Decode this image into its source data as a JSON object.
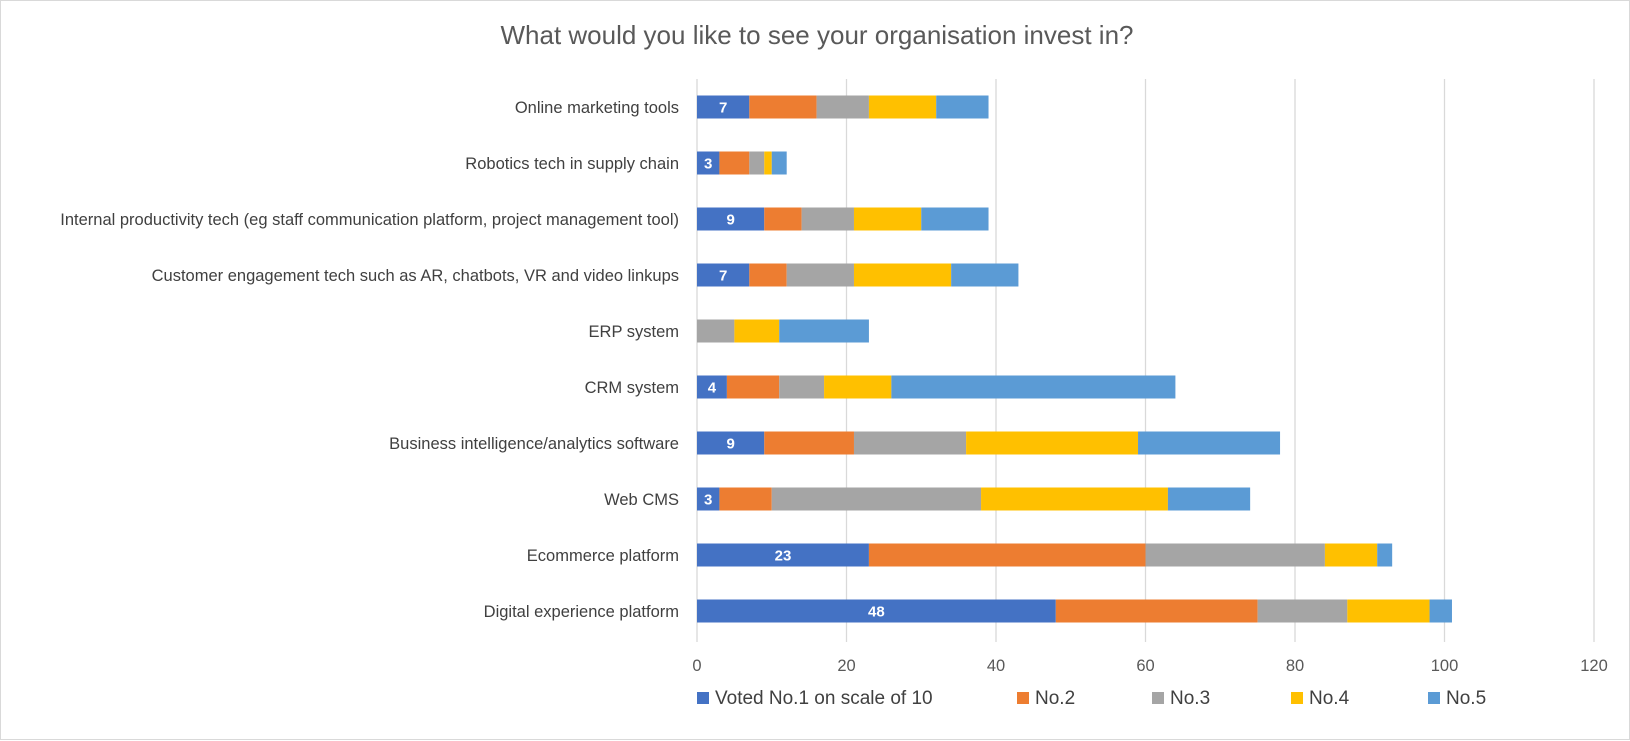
{
  "chart_data": {
    "type": "bar",
    "orientation": "horizontal",
    "stacked": true,
    "title": "What would you like to see your organisation invest in?",
    "xlabel": "",
    "ylabel": "",
    "xlim": [
      0,
      120
    ],
    "xticks": [
      0,
      20,
      40,
      60,
      80,
      100,
      120
    ],
    "grid": true,
    "legend_position": "bottom",
    "categories": [
      "Online marketing tools",
      "Robotics tech in supply chain",
      "Internal productivity tech (eg staff communication platform, project management tool)",
      "Customer engagement tech such as AR, chatbots, VR and video linkups",
      "ERP system",
      "CRM system",
      "Business intelligence/analytics software",
      "Web CMS",
      "Ecommerce platform",
      "Digital experience platform"
    ],
    "series": [
      {
        "name": "Voted No.1 on scale of 10",
        "color": "#4472c4",
        "values": [
          7,
          3,
          9,
          7,
          0,
          4,
          9,
          3,
          23,
          48
        ],
        "show_labels": true
      },
      {
        "name": "No.2",
        "color": "#ed7d31",
        "values": [
          9,
          4,
          5,
          5,
          0,
          7,
          12,
          7,
          37,
          27
        ]
      },
      {
        "name": "No.3",
        "color": "#a5a5a5",
        "values": [
          7,
          2,
          7,
          9,
          5,
          6,
          15,
          28,
          24,
          12
        ]
      },
      {
        "name": "No.4",
        "color": "#ffc000",
        "values": [
          9,
          1,
          9,
          13,
          6,
          9,
          23,
          25,
          7,
          11
        ]
      },
      {
        "name": "No.5",
        "color": "#5b9bd5",
        "values": [
          7,
          2,
          9,
          9,
          12,
          38,
          19,
          11,
          2,
          3
        ]
      }
    ]
  }
}
